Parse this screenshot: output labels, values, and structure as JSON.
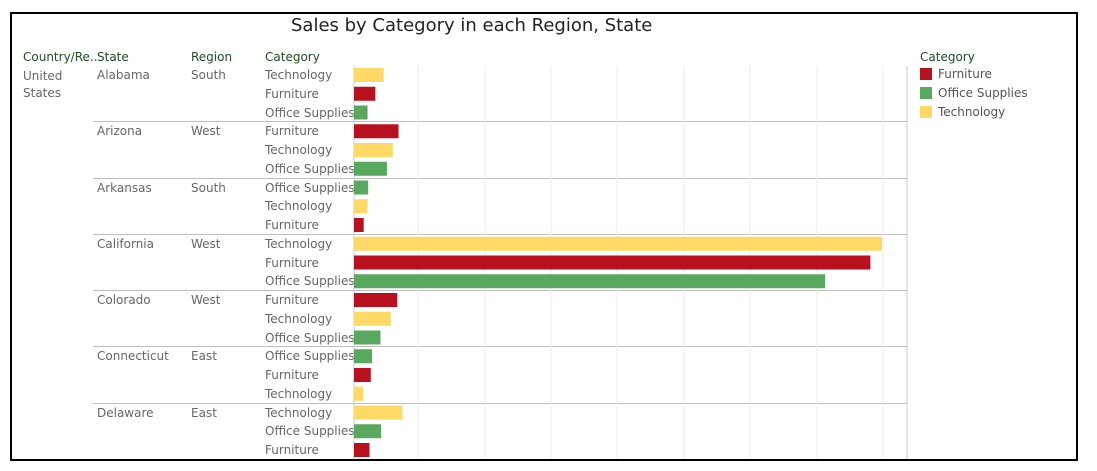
{
  "title": "Sales by Category in each Region, State",
  "headers": {
    "country": "Country/Re..",
    "state": "State",
    "region": "Region",
    "category": "Category"
  },
  "country": {
    "line1": "United",
    "line2": "States"
  },
  "legend": {
    "title": "Category",
    "items": [
      "Furniture",
      "Office Supplies",
      "Technology"
    ]
  },
  "colors": {
    "Furniture": "#b8101f",
    "Office Supplies": "#58a95f",
    "Technology": "#ffd966"
  },
  "chart_data": {
    "type": "bar",
    "orientation": "horizontal",
    "title": "Sales by Category in each Region, State",
    "xlim": [
      0,
      41000
    ],
    "grid": true,
    "legend_position": "right",
    "groups": [
      {
        "state": "Alabama",
        "region": "South",
        "rows": [
          {
            "category": "Technology",
            "value": 2300
          },
          {
            "category": "Furniture",
            "value": 1650
          },
          {
            "category": "Office Supplies",
            "value": 1050
          }
        ]
      },
      {
        "state": "Arizona",
        "region": "West",
        "rows": [
          {
            "category": "Furniture",
            "value": 3450
          },
          {
            "category": "Technology",
            "value": 3000
          },
          {
            "category": "Office Supplies",
            "value": 2550
          }
        ]
      },
      {
        "state": "Arkansas",
        "region": "South",
        "rows": [
          {
            "category": "Office Supplies",
            "value": 1100
          },
          {
            "category": "Technology",
            "value": 1050
          },
          {
            "category": "Furniture",
            "value": 750
          }
        ]
      },
      {
        "state": "California",
        "region": "West",
        "rows": [
          {
            "category": "Technology",
            "value": 40900
          },
          {
            "category": "Furniture",
            "value": 40000
          },
          {
            "category": "Office Supplies",
            "value": 36500
          }
        ]
      },
      {
        "state": "Colorado",
        "region": "West",
        "rows": [
          {
            "category": "Furniture",
            "value": 3350
          },
          {
            "category": "Technology",
            "value": 2850
          },
          {
            "category": "Office Supplies",
            "value": 2050
          }
        ]
      },
      {
        "state": "Connecticut",
        "region": "East",
        "rows": [
          {
            "category": "Office Supplies",
            "value": 1400
          },
          {
            "category": "Furniture",
            "value": 1300
          },
          {
            "category": "Technology",
            "value": 700
          }
        ]
      },
      {
        "state": "Delaware",
        "region": "East",
        "rows": [
          {
            "category": "Technology",
            "value": 3750
          },
          {
            "category": "Office Supplies",
            "value": 2100
          },
          {
            "category": "Furniture",
            "value": 1200
          }
        ]
      }
    ]
  }
}
